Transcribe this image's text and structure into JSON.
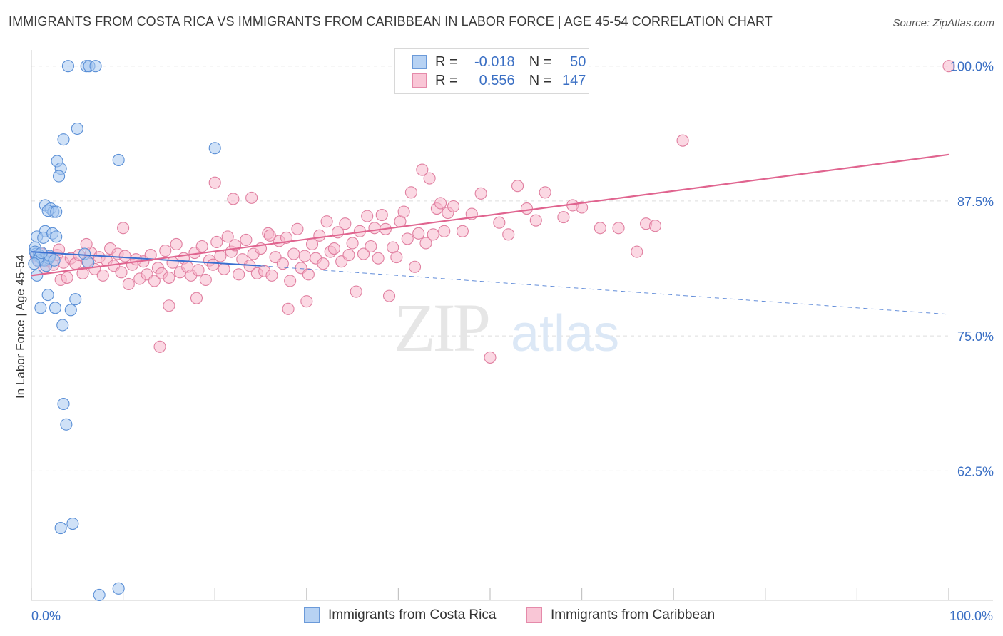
{
  "title": "IMMIGRANTS FROM COSTA RICA VS IMMIGRANTS FROM CARIBBEAN IN LABOR FORCE | AGE 45-54 CORRELATION CHART",
  "source": "Source: ZipAtlas.com",
  "watermark": {
    "zip": "ZIP",
    "atlas": "atlas"
  },
  "legend": {
    "rows": [
      {
        "r_label": "R =",
        "r_value": "-0.018",
        "n_label": "N =",
        "n_value": "50"
      },
      {
        "r_label": "R =",
        "r_value": "0.556",
        "n_label": "N =",
        "n_value": "147"
      }
    ]
  },
  "bottom_legend": [
    "Immigrants from Costa Rica",
    "Immigrants from Caribbean"
  ],
  "colors": {
    "blue_fill": "#a8c8f0",
    "blue_stroke": "#5a8fd6",
    "blue_line": "#3a6fd0",
    "pink_fill": "#f7b8cc",
    "pink_stroke": "#e07fa0",
    "pink_line": "#e0648f",
    "axis_text": "#3a6fc4",
    "grid": "#dddddd"
  },
  "chart_data": {
    "type": "scatter",
    "title": "IMMIGRANTS FROM COSTA RICA VS IMMIGRANTS FROM CARIBBEAN IN LABOR FORCE | AGE 45-54 CORRELATION CHART",
    "xlabel": "",
    "ylabel": "In Labor Force | Age 45-54",
    "xlim": [
      0,
      100
    ],
    "ylim": [
      50.5,
      101.5
    ],
    "x_tick_labels": [
      "0.0%",
      "100.0%"
    ],
    "y_ticks": [
      62.5,
      75.0,
      87.5,
      100.0
    ],
    "y_tick_labels": [
      "62.5%",
      "75.0%",
      "87.5%",
      "100.0%"
    ],
    "grid": true,
    "legend_position": "top-center",
    "series": [
      {
        "name": "Immigrants from Costa Rica",
        "R": -0.018,
        "N": 50,
        "trend": {
          "solid": [
            [
              0,
              82.8
            ],
            [
              25,
              81.5
            ]
          ],
          "dashed": [
            [
              25,
              81.5
            ],
            [
              100,
              77.0
            ]
          ]
        },
        "points": [
          [
            4,
            100
          ],
          [
            6,
            100
          ],
          [
            6.3,
            100
          ],
          [
            7,
            100
          ],
          [
            5,
            94.2
          ],
          [
            3.5,
            93.2
          ],
          [
            9.5,
            91.3
          ],
          [
            20,
            92.4
          ],
          [
            2.8,
            91.2
          ],
          [
            3.2,
            90.5
          ],
          [
            3.0,
            89.8
          ],
          [
            1.5,
            87.1
          ],
          [
            2.1,
            86.8
          ],
          [
            2.4,
            86.5
          ],
          [
            1.8,
            86.6
          ],
          [
            2.7,
            86.5
          ],
          [
            1.5,
            84.7
          ],
          [
            0.6,
            84.2
          ],
          [
            1.3,
            84.1
          ],
          [
            2.3,
            84.5
          ],
          [
            2.7,
            84.2
          ],
          [
            0.4,
            83.2
          ],
          [
            0.5,
            82.6
          ],
          [
            0.8,
            82.5
          ],
          [
            0.4,
            82.8
          ],
          [
            0.9,
            82.3
          ],
          [
            1.2,
            82.1
          ],
          [
            1.4,
            82.0
          ],
          [
            1.9,
            82.2
          ],
          [
            2.0,
            82.4
          ],
          [
            0.7,
            82.0
          ],
          [
            1.6,
            81.5
          ],
          [
            0.3,
            81.7
          ],
          [
            0.6,
            80.6
          ],
          [
            5.8,
            82.6
          ],
          [
            6.2,
            81.8
          ],
          [
            1.8,
            78.8
          ],
          [
            4.8,
            78.4
          ],
          [
            1.0,
            77.6
          ],
          [
            2.6,
            77.6
          ],
          [
            4.3,
            77.4
          ],
          [
            3.4,
            76.0
          ],
          [
            3.5,
            68.7
          ],
          [
            3.8,
            66.8
          ],
          [
            3.2,
            57.2
          ],
          [
            4.5,
            57.6
          ],
          [
            7.4,
            51.0
          ],
          [
            9.5,
            51.6
          ],
          [
            1.1,
            82.7
          ],
          [
            2.5,
            82.0
          ]
        ]
      },
      {
        "name": "Immigrants from Caribbean",
        "R": 0.556,
        "N": 147,
        "trend": {
          "solid": [
            [
              0,
              80.6
            ],
            [
              100,
              91.8
            ]
          ]
        },
        "points": [
          [
            0.5,
            82.4
          ],
          [
            0.8,
            81.9
          ],
          [
            1.1,
            82.6
          ],
          [
            1.4,
            81.3
          ],
          [
            1.7,
            82.0
          ],
          [
            2.0,
            82.3
          ],
          [
            2.4,
            81.6
          ],
          [
            2.8,
            82.5
          ],
          [
            3.2,
            80.2
          ],
          [
            3.5,
            81.8
          ],
          [
            3.9,
            80.4
          ],
          [
            4.3,
            82.2
          ],
          [
            4.8,
            81.7
          ],
          [
            5.2,
            82.5
          ],
          [
            5.6,
            80.8
          ],
          [
            6.1,
            81.9
          ],
          [
            6.5,
            82.7
          ],
          [
            6.9,
            81.2
          ],
          [
            7.4,
            82.3
          ],
          [
            7.8,
            80.6
          ],
          [
            8.2,
            82.0
          ],
          [
            8.6,
            83.1
          ],
          [
            9.0,
            81.5
          ],
          [
            9.4,
            82.6
          ],
          [
            9.8,
            80.9
          ],
          [
            10.2,
            82.4
          ],
          [
            10.6,
            79.8
          ],
          [
            11.0,
            81.6
          ],
          [
            11.4,
            82.1
          ],
          [
            11.8,
            80.3
          ],
          [
            12.2,
            81.9
          ],
          [
            12.6,
            80.7
          ],
          [
            13.0,
            82.5
          ],
          [
            13.4,
            80.1
          ],
          [
            13.8,
            81.3
          ],
          [
            14.2,
            80.8
          ],
          [
            14.6,
            82.9
          ],
          [
            15.0,
            80.4
          ],
          [
            15.4,
            81.8
          ],
          [
            15.8,
            83.5
          ],
          [
            16.2,
            80.9
          ],
          [
            16.6,
            82.2
          ],
          [
            17.0,
            81.4
          ],
          [
            17.4,
            80.6
          ],
          [
            17.8,
            82.7
          ],
          [
            18.2,
            81.1
          ],
          [
            18.6,
            83.3
          ],
          [
            19.0,
            80.2
          ],
          [
            19.4,
            82.0
          ],
          [
            19.8,
            81.6
          ],
          [
            20.2,
            83.7
          ],
          [
            20.6,
            82.4
          ],
          [
            21.0,
            81.2
          ],
          [
            21.4,
            84.2
          ],
          [
            21.8,
            82.8
          ],
          [
            22.2,
            83.4
          ],
          [
            22.6,
            80.7
          ],
          [
            23.0,
            82.1
          ],
          [
            23.4,
            83.9
          ],
          [
            23.8,
            81.5
          ],
          [
            24.2,
            82.6
          ],
          [
            24.6,
            80.8
          ],
          [
            25.0,
            83.1
          ],
          [
            25.4,
            81.0
          ],
          [
            25.8,
            84.5
          ],
          [
            26.2,
            80.6
          ],
          [
            26.6,
            82.3
          ],
          [
            27.0,
            83.8
          ],
          [
            27.4,
            81.7
          ],
          [
            27.8,
            84.1
          ],
          [
            28.2,
            80.1
          ],
          [
            28.6,
            82.6
          ],
          [
            29.0,
            84.9
          ],
          [
            29.4,
            81.3
          ],
          [
            29.8,
            82.4
          ],
          [
            30.2,
            80.7
          ],
          [
            30.6,
            83.5
          ],
          [
            31.0,
            82.2
          ],
          [
            31.4,
            84.3
          ],
          [
            31.8,
            81.7
          ],
          [
            32.2,
            85.6
          ],
          [
            32.6,
            82.8
          ],
          [
            33.0,
            83.1
          ],
          [
            33.4,
            84.6
          ],
          [
            33.8,
            81.9
          ],
          [
            34.2,
            85.4
          ],
          [
            34.6,
            82.5
          ],
          [
            35.0,
            83.6
          ],
          [
            35.4,
            79.1
          ],
          [
            35.8,
            84.7
          ],
          [
            36.2,
            82.6
          ],
          [
            36.6,
            86.1
          ],
          [
            37.0,
            83.3
          ],
          [
            37.4,
            85.0
          ],
          [
            37.8,
            82.2
          ],
          [
            38.2,
            86.2
          ],
          [
            38.6,
            84.9
          ],
          [
            39.0,
            78.7
          ],
          [
            39.4,
            83.2
          ],
          [
            39.8,
            82.3
          ],
          [
            40.2,
            85.6
          ],
          [
            40.6,
            86.5
          ],
          [
            41.0,
            84.0
          ],
          [
            41.4,
            88.3
          ],
          [
            41.8,
            81.4
          ],
          [
            42.2,
            84.5
          ],
          [
            42.6,
            90.4
          ],
          [
            43.0,
            83.6
          ],
          [
            43.4,
            89.6
          ],
          [
            43.8,
            84.4
          ],
          [
            44.2,
            86.8
          ],
          [
            44.6,
            87.3
          ],
          [
            45.0,
            84.7
          ],
          [
            45.4,
            86.4
          ],
          [
            46.0,
            87.0
          ],
          [
            47.0,
            84.7
          ],
          [
            48.0,
            86.3
          ],
          [
            49.0,
            88.2
          ],
          [
            50.0,
            73.0
          ],
          [
            51.0,
            85.5
          ],
          [
            52.0,
            84.4
          ],
          [
            53.0,
            88.9
          ],
          [
            54.0,
            86.8
          ],
          [
            55.0,
            85.7
          ],
          [
            56.0,
            88.3
          ],
          [
            58.0,
            86.0
          ],
          [
            59.0,
            87.1
          ],
          [
            60.0,
            86.9
          ],
          [
            62.0,
            85.0
          ],
          [
            64.0,
            85.0
          ],
          [
            66.0,
            82.8
          ],
          [
            67.0,
            85.4
          ],
          [
            68.0,
            85.2
          ],
          [
            71.0,
            93.1
          ],
          [
            3.0,
            83.0
          ],
          [
            6.0,
            83.5
          ],
          [
            10.0,
            85.0
          ],
          [
            14.0,
            74.0
          ],
          [
            15.0,
            77.8
          ],
          [
            18.0,
            78.5
          ],
          [
            20.0,
            89.2
          ],
          [
            22.0,
            87.7
          ],
          [
            24.0,
            87.8
          ],
          [
            26.0,
            84.3
          ],
          [
            28.0,
            77.5
          ],
          [
            100,
            100
          ],
          [
            30.0,
            78.2
          ]
        ]
      }
    ]
  }
}
